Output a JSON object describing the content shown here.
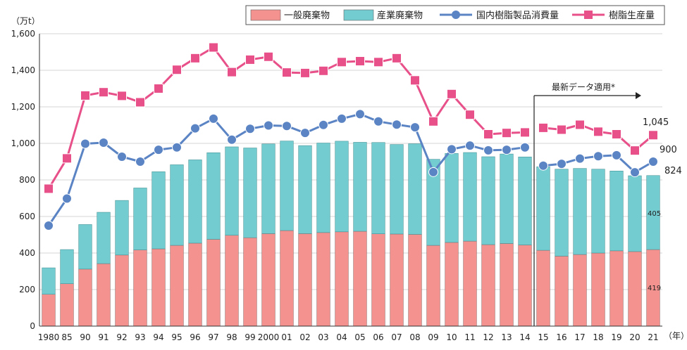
{
  "chart_data": {
    "type": "bar",
    "ylabel": "（万t）",
    "xunit": "（年）",
    "ylim": [
      0,
      1600
    ],
    "yticks": [
      0,
      200,
      400,
      600,
      800,
      1000,
      1200,
      1400,
      1600
    ],
    "grid": true,
    "legend_position": "top-right",
    "categories": [
      "1980",
      "85",
      "90",
      "91",
      "92",
      "93",
      "94",
      "95",
      "96",
      "97",
      "98",
      "99",
      "2000",
      "01",
      "02",
      "03",
      "04",
      "05",
      "06",
      "07",
      "08",
      "09",
      "10",
      "11",
      "12",
      "13",
      "14",
      "15",
      "16",
      "17",
      "18",
      "19",
      "20",
      "21"
    ],
    "series": [
      {
        "name": "一般廃棄物",
        "kind": "bar",
        "stack": "waste",
        "color": "#f4928f",
        "values": [
          174,
          232,
          312,
          342,
          389,
          417,
          423,
          442,
          454,
          475,
          497,
          484,
          506,
          523,
          506,
          512,
          516,
          519,
          505,
          504,
          502,
          442,
          458,
          465,
          446,
          452,
          444,
          415,
          383,
          392,
          400,
          412,
          408,
          419
        ]
      },
      {
        "name": "産業廃棄物",
        "kind": "bar",
        "stack": "waste",
        "color": "#72ccd0",
        "values": [
          145,
          187,
          244,
          281,
          299,
          339,
          422,
          441,
          456,
          474,
          484,
          491,
          491,
          490,
          482,
          490,
          496,
          487,
          500,
          490,
          496,
          471,
          487,
          485,
          481,
          490,
          482,
          457,
          476,
          471,
          459,
          437,
          415,
          405
        ]
      },
      {
        "name": "国内樹脂製品消費量",
        "kind": "line",
        "color": "#5b84c4",
        "marker": "circle",
        "values": [
          550,
          698,
          998,
          1004,
          927,
          900,
          965,
          978,
          1082,
          1135,
          1020,
          1080,
          1098,
          1095,
          1057,
          1101,
          1135,
          1160,
          1120,
          1103,
          1088,
          843,
          968,
          988,
          962,
          965,
          978,
          878,
          888,
          917,
          930,
          935,
          842,
          900
        ]
      },
      {
        "name": "樹脂生産量",
        "kind": "line",
        "color": "#e8508a",
        "marker": "square",
        "values": [
          752,
          918,
          1262,
          1280,
          1260,
          1225,
          1300,
          1403,
          1466,
          1525,
          1390,
          1458,
          1474,
          1388,
          1385,
          1397,
          1445,
          1450,
          1445,
          1466,
          1345,
          1120,
          1270,
          1157,
          1050,
          1057,
          1060,
          1085,
          1075,
          1102,
          1064,
          1050,
          961,
          1045
        ]
      }
    ],
    "break_after_index": 26,
    "annotation": "最新データ適用*",
    "end_labels": {
      "resin_production": "1,045",
      "resin_consumption": "900",
      "total_waste": "824",
      "industrial_last": "405",
      "general_last": "419"
    }
  }
}
